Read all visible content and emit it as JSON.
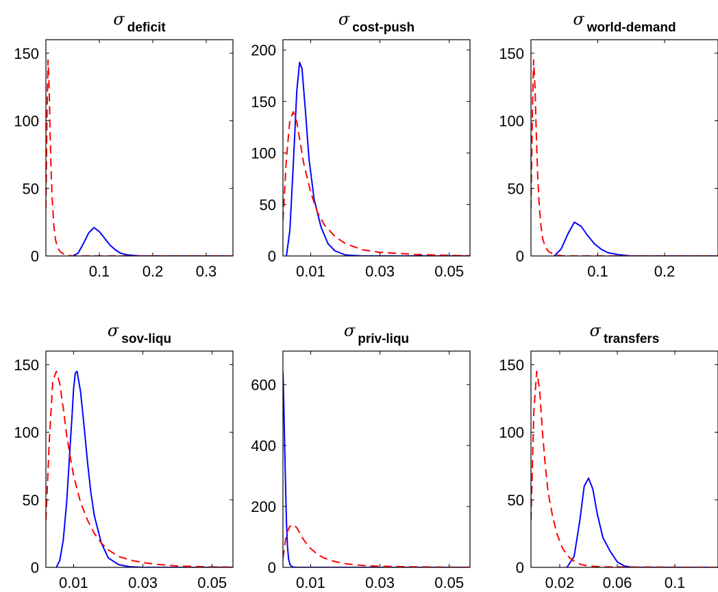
{
  "figure": {
    "line_styles": {
      "posterior": {
        "color": "#0000ff",
        "dash": "solid"
      },
      "prior": {
        "color": "#ff0000",
        "dash": "dashed"
      }
    }
  },
  "chart_data": [
    {
      "type": "line",
      "title_symbol": "σ",
      "title_subscript": "deficit",
      "xlim": [
        0,
        0.35
      ],
      "ylim": [
        0,
        160
      ],
      "xticks": [
        0.1,
        0.2,
        0.3
      ],
      "xtick_labels": [
        "0.1",
        "0.2",
        "0.3"
      ],
      "yticks": [
        0,
        50,
        100,
        150
      ],
      "ytick_labels": [
        "0",
        "50",
        "100",
        "150"
      ],
      "series": [
        {
          "style": "posterior",
          "x": [
            0.05,
            0.06,
            0.07,
            0.08,
            0.09,
            0.1,
            0.11,
            0.12,
            0.13,
            0.14,
            0.15,
            0.16,
            0.18,
            0.2,
            0.25,
            0.35
          ],
          "y": [
            0,
            2,
            9,
            17,
            21,
            18,
            13,
            8,
            4.5,
            2,
            1,
            0.5,
            0,
            0,
            0,
            0
          ]
        },
        {
          "style": "prior",
          "x": [
            0,
            0.002,
            0.004,
            0.006,
            0.008,
            0.01,
            0.012,
            0.015,
            0.018,
            0.022,
            0.027,
            0.033,
            0.04,
            0.05,
            0.06,
            0.35
          ],
          "y": [
            35,
            105,
            145,
            125,
            90,
            60,
            40,
            22,
            12,
            6,
            3,
            1.5,
            0.5,
            0,
            0,
            0
          ]
        }
      ]
    },
    {
      "type": "line",
      "title_symbol": "σ",
      "title_subscript": "cost-push",
      "xlim": [
        0.002,
        0.056
      ],
      "ylim": [
        0,
        210
      ],
      "xticks": [
        0.01,
        0.03,
        0.05
      ],
      "xtick_labels": [
        "0.01",
        "0.03",
        "0.05"
      ],
      "yticks": [
        0,
        50,
        100,
        150,
        200
      ],
      "ytick_labels": [
        "0",
        "50",
        "100",
        "150",
        "200"
      ],
      "series": [
        {
          "style": "posterior",
          "x": [
            0.003,
            0.004,
            0.005,
            0.006,
            0.0068,
            0.0075,
            0.0085,
            0.0095,
            0.011,
            0.013,
            0.015,
            0.017,
            0.02,
            0.025,
            0.056
          ],
          "y": [
            0,
            25,
            90,
            160,
            188,
            182,
            140,
            95,
            55,
            28,
            12,
            5,
            1,
            0,
            0
          ]
        },
        {
          "style": "prior",
          "x": [
            0.002,
            0.003,
            0.004,
            0.005,
            0.006,
            0.007,
            0.008,
            0.01,
            0.012,
            0.014,
            0.017,
            0.02,
            0.025,
            0.03,
            0.04,
            0.05,
            0.056
          ],
          "y": [
            35,
            95,
            132,
            140,
            130,
            110,
            90,
            62,
            42,
            30,
            19,
            12,
            6,
            3.5,
            1.5,
            0.5,
            0.2
          ]
        }
      ]
    },
    {
      "type": "line",
      "title_symbol": "σ",
      "title_subscript": "world-demand",
      "xlim": [
        0,
        0.28
      ],
      "ylim": [
        0,
        160
      ],
      "xticks": [
        0.1,
        0.2
      ],
      "xtick_labels": [
        "0.1",
        "0.2"
      ],
      "yticks": [
        0,
        50,
        100,
        150
      ],
      "ytick_labels": [
        "0",
        "50",
        "100",
        "150"
      ],
      "series": [
        {
          "style": "posterior",
          "x": [
            0.035,
            0.045,
            0.055,
            0.065,
            0.075,
            0.085,
            0.095,
            0.105,
            0.115,
            0.13,
            0.15,
            0.28
          ],
          "y": [
            0,
            5,
            16,
            25,
            22,
            15,
            9,
            5,
            2.5,
            1,
            0,
            0
          ]
        },
        {
          "style": "prior",
          "x": [
            0,
            0.002,
            0.004,
            0.006,
            0.008,
            0.01,
            0.012,
            0.015,
            0.018,
            0.022,
            0.027,
            0.033,
            0.04,
            0.05,
            0.28
          ],
          "y": [
            35,
            105,
            145,
            125,
            90,
            60,
            40,
            22,
            12,
            6,
            3,
            1.5,
            0.5,
            0,
            0
          ]
        }
      ]
    },
    {
      "type": "line",
      "title_symbol": "σ",
      "title_subscript": "sov-liqu",
      "xlim": [
        0.002,
        0.056
      ],
      "ylim": [
        0,
        160
      ],
      "xticks": [
        0.01,
        0.03,
        0.05
      ],
      "xtick_labels": [
        "0.01",
        "0.03",
        "0.05"
      ],
      "yticks": [
        0,
        50,
        100,
        150
      ],
      "ytick_labels": [
        "0",
        "50",
        "100",
        "150"
      ],
      "series": [
        {
          "style": "posterior",
          "x": [
            0.005,
            0.006,
            0.007,
            0.008,
            0.009,
            0.0095,
            0.01,
            0.0105,
            0.011,
            0.012,
            0.013,
            0.014,
            0.015,
            0.016,
            0.018,
            0.02,
            0.023,
            0.026,
            0.03,
            0.056
          ],
          "y": [
            0,
            5,
            20,
            48,
            90,
            110,
            132,
            144,
            145,
            130,
            105,
            78,
            55,
            38,
            18,
            7,
            2,
            0.5,
            0,
            0
          ]
        },
        {
          "style": "prior",
          "x": [
            0.002,
            0.003,
            0.004,
            0.005,
            0.006,
            0.007,
            0.008,
            0.009,
            0.01,
            0.012,
            0.014,
            0.016,
            0.018,
            0.02,
            0.023,
            0.027,
            0.03,
            0.035,
            0.04,
            0.05,
            0.056
          ],
          "y": [
            35,
            95,
            138,
            145,
            136,
            118,
            98,
            82,
            68,
            48,
            35,
            25,
            18,
            13,
            8,
            5,
            3.5,
            2,
            1,
            0.3,
            0.2
          ]
        }
      ]
    },
    {
      "type": "line",
      "title_symbol": "σ",
      "title_subscript": "priv-liqu",
      "xlim": [
        0.002,
        0.056
      ],
      "ylim": [
        0,
        710
      ],
      "xticks": [
        0.01,
        0.03,
        0.05
      ],
      "xtick_labels": [
        "0.01",
        "0.03",
        "0.05"
      ],
      "yticks": [
        0,
        200,
        400,
        600
      ],
      "ytick_labels": [
        "0",
        "200",
        "400",
        "600"
      ],
      "series": [
        {
          "style": "posterior",
          "x": [
            0.002,
            0.0022,
            0.0025,
            0.0028,
            0.003,
            0.0033,
            0.0036,
            0.004,
            0.0045,
            0.005,
            0.006,
            0.008,
            0.056
          ],
          "y": [
            640,
            560,
            400,
            250,
            150,
            70,
            30,
            10,
            3,
            1,
            0,
            0,
            0
          ]
        },
        {
          "style": "prior",
          "x": [
            0.002,
            0.003,
            0.004,
            0.005,
            0.006,
            0.007,
            0.008,
            0.01,
            0.012,
            0.014,
            0.017,
            0.02,
            0.025,
            0.03,
            0.04,
            0.05,
            0.056
          ],
          "y": [
            30,
            110,
            135,
            140,
            130,
            110,
            90,
            62,
            42,
            30,
            19,
            12,
            6,
            3.5,
            1.5,
            0.5,
            0.2
          ]
        }
      ]
    },
    {
      "type": "line",
      "title_symbol": "σ",
      "title_subscript": "transfers",
      "xlim": [
        0,
        0.13
      ],
      "ylim": [
        0,
        160
      ],
      "xticks": [
        0.02,
        0.06,
        0.1
      ],
      "xtick_labels": [
        "0.02",
        "0.06",
        "0.1"
      ],
      "yticks": [
        0,
        50,
        100,
        150
      ],
      "ytick_labels": [
        "0",
        "50",
        "100",
        "150"
      ],
      "series": [
        {
          "style": "posterior",
          "x": [
            0.025,
            0.03,
            0.034,
            0.037,
            0.04,
            0.043,
            0.046,
            0.05,
            0.055,
            0.06,
            0.065,
            0.07,
            0.13
          ],
          "y": [
            0,
            8,
            35,
            60,
            66,
            58,
            40,
            22,
            12,
            4,
            1,
            0,
            0
          ]
        },
        {
          "style": "prior",
          "x": [
            0.0,
            0.002,
            0.004,
            0.006,
            0.008,
            0.01,
            0.012,
            0.015,
            0.018,
            0.022,
            0.026,
            0.03,
            0.035,
            0.04,
            0.05,
            0.13
          ],
          "y": [
            35,
            115,
            145,
            132,
            100,
            75,
            55,
            38,
            25,
            14,
            8,
            4.5,
            2,
            1,
            0.3,
            0
          ]
        }
      ]
    }
  ]
}
